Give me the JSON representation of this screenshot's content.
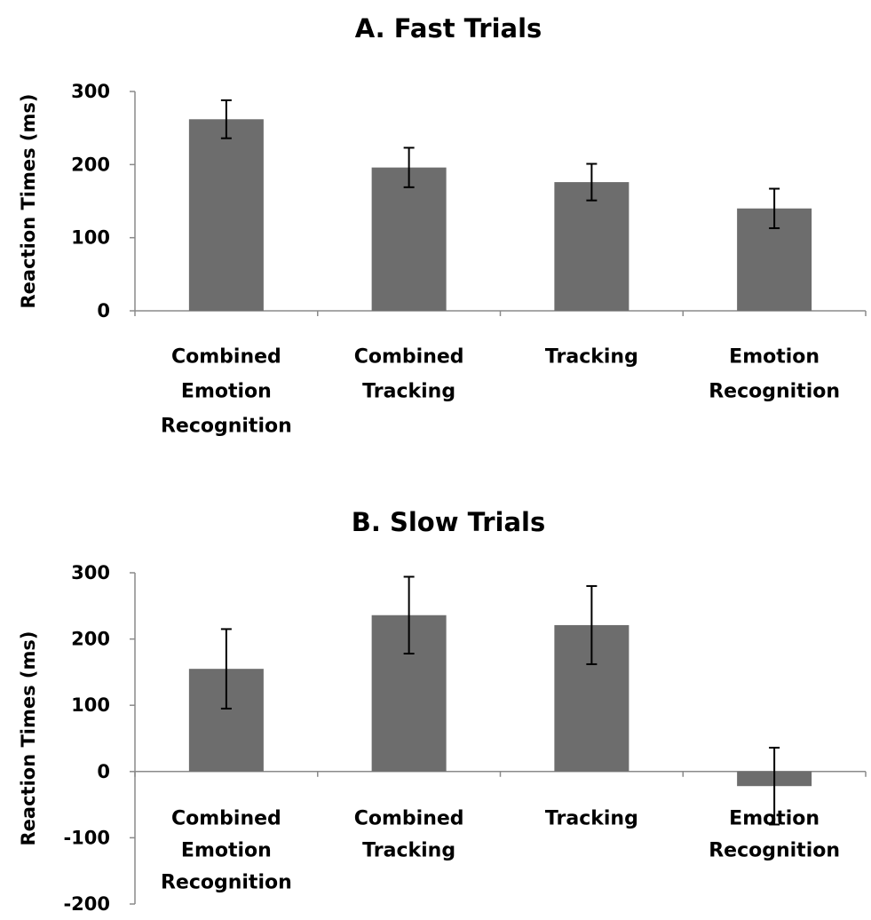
{
  "chart_data": [
    {
      "type": "bar",
      "title": "A.  Fast Trials",
      "ylabel": "Reaction Times (ms)",
      "xlabel": "",
      "categories": [
        [
          "Combined",
          "Emotion",
          "Recognition"
        ],
        [
          "Combined",
          "Tracking"
        ],
        [
          "Tracking"
        ],
        [
          "Emotion",
          "Recognition"
        ]
      ],
      "values": [
        262,
        196,
        176,
        140
      ],
      "error": [
        26,
        27,
        25,
        27
      ],
      "ylim": [
        0,
        300
      ],
      "yticks": [
        "0",
        "100",
        "200",
        "300"
      ],
      "bar_color": "#6d6d6d",
      "grid": false,
      "legend": "none"
    },
    {
      "type": "bar",
      "title": "B.  Slow Trials",
      "ylabel": "Reaction Times (ms)",
      "xlabel": "",
      "categories": [
        [
          "Combined",
          "Emotion",
          "Recognition"
        ],
        [
          "Combined",
          "Tracking"
        ],
        [
          "Tracking"
        ],
        [
          "Emotion",
          "Recognition"
        ]
      ],
      "values": [
        155,
        236,
        221,
        -22
      ],
      "error": [
        60,
        58,
        59,
        58
      ],
      "ylim": [
        -200,
        300
      ],
      "yticks": [
        "-200",
        "-100",
        "0",
        "100",
        "200",
        "300"
      ],
      "bar_color": "#6d6d6d",
      "grid": false,
      "legend": "none"
    }
  ]
}
